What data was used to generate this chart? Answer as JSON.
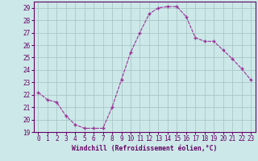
{
  "x": [
    0,
    1,
    2,
    3,
    4,
    5,
    6,
    7,
    8,
    9,
    10,
    11,
    12,
    13,
    14,
    15,
    16,
    17,
    18,
    19,
    20,
    21,
    22,
    23
  ],
  "y": [
    22.2,
    21.6,
    21.4,
    20.3,
    19.6,
    19.3,
    19.3,
    19.3,
    21.0,
    23.2,
    25.4,
    27.0,
    28.5,
    29.0,
    29.1,
    29.1,
    28.3,
    26.6,
    26.3,
    26.3,
    25.6,
    24.9,
    24.1,
    23.2
  ],
  "line_color": "#993399",
  "marker": "+",
  "marker_size": 3.5,
  "bg_color": "#cce8e8",
  "grid_color": "#aac8c8",
  "xlabel": "Windchill (Refroidissement éolien,°C)",
  "xlim": [
    -0.5,
    23.5
  ],
  "ylim": [
    19,
    29.5
  ],
  "yticks": [
    19,
    20,
    21,
    22,
    23,
    24,
    25,
    26,
    27,
    28,
    29
  ],
  "xticks": [
    0,
    1,
    2,
    3,
    4,
    5,
    6,
    7,
    8,
    9,
    10,
    11,
    12,
    13,
    14,
    15,
    16,
    17,
    18,
    19,
    20,
    21,
    22,
    23
  ],
  "label_color": "#660066",
  "tick_color": "#660066",
  "axis_color": "#660066",
  "xlabel_fontsize": 5.8,
  "tick_fontsize": 5.5
}
